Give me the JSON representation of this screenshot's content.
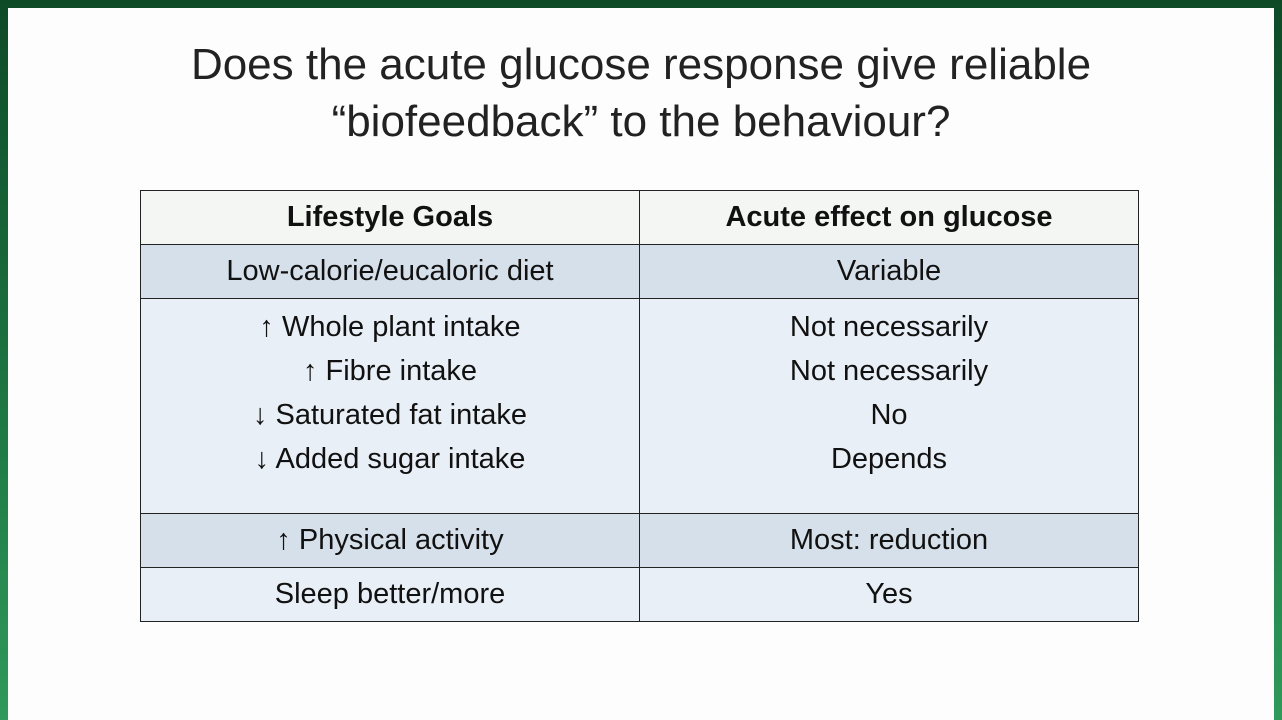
{
  "title": {
    "lines": [
      "Does the acute glucose response give reliable",
      "“biofeedback” to the behaviour?"
    ]
  },
  "table": {
    "header": [
      "Lifestyle Goals",
      "Acute effect on glucose"
    ],
    "rows": [
      [
        [
          "Low-calorie/eucaloric diet"
        ],
        [
          "Variable"
        ]
      ],
      [
        [
          "↑ Whole plant intake",
          "↑ Fibre intake",
          "↓ Saturated fat intake",
          "↓ Added sugar intake"
        ],
        [
          "Not necessarily",
          "Not necessarily",
          "No",
          "Depends"
        ]
      ],
      [
        [
          "↑ Physical activity"
        ],
        [
          "Most: reduction"
        ]
      ],
      [
        [
          "Sleep better/more"
        ],
        [
          "Yes"
        ]
      ]
    ]
  }
}
